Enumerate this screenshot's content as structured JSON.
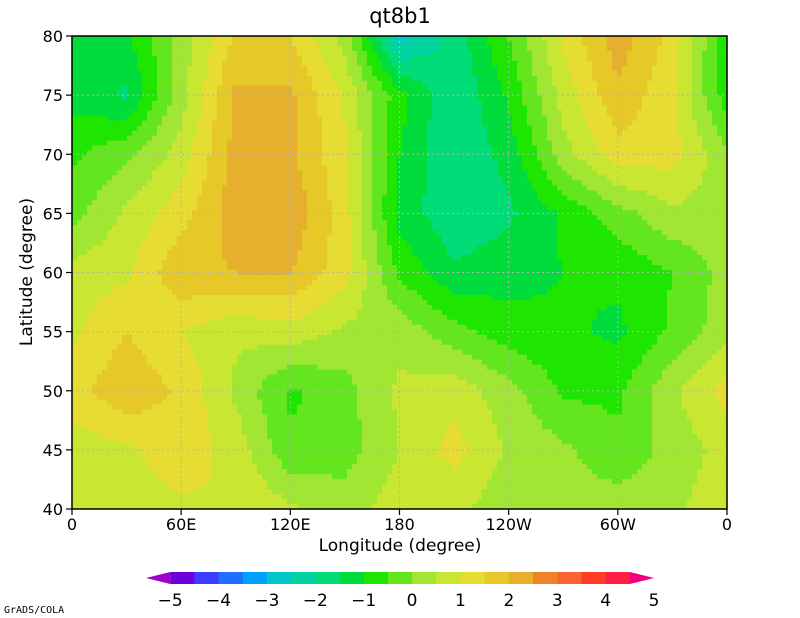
{
  "chart_data": {
    "type": "heatmap",
    "title": "qt8b1",
    "xlabel": "Longitude (degree)",
    "ylabel": "Latitude (degree)",
    "x_range": [
      0,
      360
    ],
    "ylim": [
      40,
      80
    ],
    "x_ticks": [
      "0",
      "60E",
      "120E",
      "180",
      "120W",
      "60W",
      "0"
    ],
    "y_ticks": [
      "40",
      "45",
      "50",
      "55",
      "60",
      "65",
      "70",
      "75",
      "80"
    ],
    "grid": true,
    "colorbar": {
      "orientation": "horizontal",
      "ticks": [
        "−5",
        "−4",
        "−3",
        "−2",
        "−1",
        "0",
        "1",
        "2",
        "3",
        "4",
        "5"
      ],
      "levels": [
        -5,
        -4.5,
        -4,
        -3.5,
        -3,
        -2.5,
        -2,
        -1.5,
        -1,
        -0.5,
        0,
        0.5,
        1,
        1.5,
        2,
        2.5,
        3,
        3.5,
        4,
        4.5,
        5
      ],
      "colors": [
        "#a000c8",
        "#6e00dc",
        "#3c3cff",
        "#1e6eff",
        "#00a0ff",
        "#00c8c8",
        "#00d2a0",
        "#00dc78",
        "#00dc3c",
        "#1ee600",
        "#64e61e",
        "#a0e632",
        "#c8e632",
        "#e6dc32",
        "#e6c828",
        "#e6af2d",
        "#f08228",
        "#fa6432",
        "#ff3c28",
        "#ff1e46",
        "#f00082"
      ]
    },
    "grid_lon": [
      0,
      30,
      60,
      90,
      120,
      150,
      180,
      210,
      240,
      270,
      300,
      330,
      360
    ],
    "grid_lat": [
      40,
      45,
      50,
      55,
      60,
      65,
      70,
      75,
      80
    ],
    "values": [
      [
        0.8,
        0.8,
        0.9,
        1.0,
        0.6,
        0.2,
        0.8,
        0.6,
        0.2,
        0.2,
        0.3,
        0.4,
        0.8
      ],
      [
        0.7,
        0.9,
        1.3,
        0.8,
        -0.4,
        -0.2,
        0.5,
        1.2,
        0.4,
        0.1,
        -0.4,
        0.2,
        0.7
      ],
      [
        1.3,
        1.9,
        1.4,
        0.4,
        -0.6,
        -0.2,
        0.6,
        0.8,
        0.2,
        -0.6,
        -0.6,
        0.4,
        1.2
      ],
      [
        0.9,
        1.5,
        1.0,
        0.6,
        0.8,
        0.4,
        0.3,
        -0.3,
        -0.8,
        -0.9,
        -1.1,
        -0.4,
        0.3
      ],
      [
        0.7,
        0.9,
        1.9,
        2.0,
        2.0,
        1.2,
        -0.6,
        -1.4,
        -1.2,
        -1.0,
        -0.9,
        -0.5,
        0.2
      ],
      [
        -0.2,
        0.6,
        1.3,
        2.3,
        2.4,
        1.2,
        -1.2,
        -1.9,
        -1.6,
        -0.9,
        -0.2,
        0.4,
        0.3
      ],
      [
        -0.6,
        -0.1,
        0.7,
        2.2,
        2.1,
        1.1,
        -1.0,
        -2.0,
        -1.3,
        0.3,
        1.3,
        1.2,
        0.1
      ],
      [
        -1.2,
        -1.6,
        0.3,
        2.1,
        2.1,
        0.9,
        -0.8,
        -2.0,
        -0.9,
        0.7,
        1.9,
        1.1,
        -0.8
      ],
      [
        -1.1,
        -1.1,
        0.2,
        1.6,
        1.5,
        0.3,
        -2.8,
        -1.8,
        -0.5,
        1.1,
        2.3,
        1.3,
        -0.9
      ]
    ]
  },
  "credit": "GrADS/COLA"
}
